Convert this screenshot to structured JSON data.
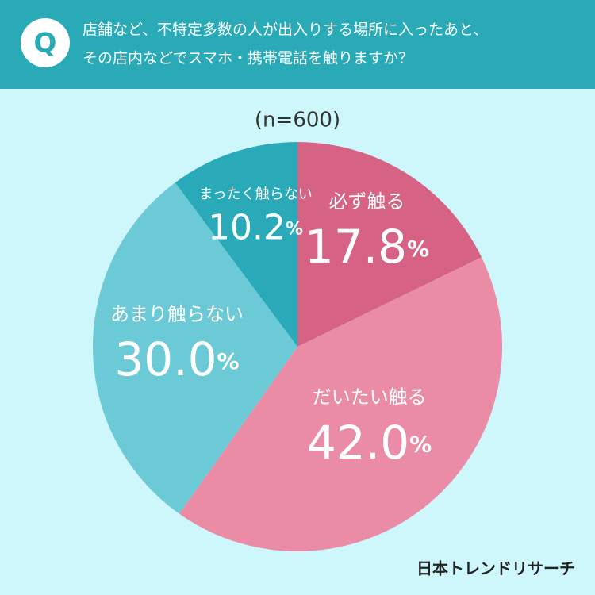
{
  "chart_data": {
    "type": "pie",
    "badge": "Q",
    "title": [
      "店舗など、不特定多数の人が出入りする場所に入ったあと、",
      "その店内などでスマホ・携帯電話を触りますか？"
    ],
    "subtitle": "(n=600)",
    "categories": [
      "必ず触る",
      "だいたい触る",
      "あまり触らない",
      "まったく触らない"
    ],
    "values": [
      17.8,
      42.0,
      30.0,
      10.2
    ],
    "value_labels": [
      "17.8%",
      "42.0%",
      "30.0%",
      "10.2%"
    ],
    "colors": [
      "#d66384",
      "#ea8ca6",
      "#6ccad6",
      "#2aaab9"
    ],
    "source": "日本トレンドリサーチ"
  }
}
